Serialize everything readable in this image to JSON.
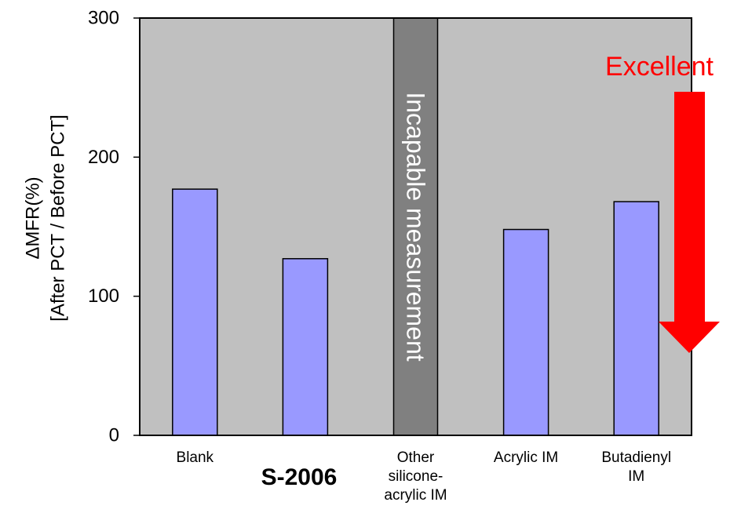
{
  "chart_data": {
    "type": "bar",
    "categories": [
      "Blank",
      "S-2006",
      "Other silicone-acrylic IM",
      "Acrylic IM",
      "Butadienyl IM"
    ],
    "category_tick_labels": [
      [
        "Blank"
      ],
      [],
      [
        "Other",
        "silicone-",
        "acrylic IM"
      ],
      [
        "Acrylic IM"
      ],
      [
        "Butadienyl",
        "IM"
      ]
    ],
    "values": [
      177,
      127,
      null,
      148,
      168
    ],
    "ylabel_lines": [
      "ΔMFR(%)",
      "[After PCT / Before PCT]"
    ],
    "ylim": [
      0,
      300
    ],
    "yticks": [
      0,
      100,
      200,
      300
    ],
    "grid": false,
    "annotations": {
      "incapable": "Incapable measurement",
      "excellent": "Excellent",
      "s2006_label": "S-2006"
    },
    "colors": {
      "plot_background": "#c0c0c0",
      "bar_fill": "#9999ff",
      "incapable_band": "#808080",
      "arrow": "#ff0000",
      "excellent_text": "#ff0000"
    }
  }
}
